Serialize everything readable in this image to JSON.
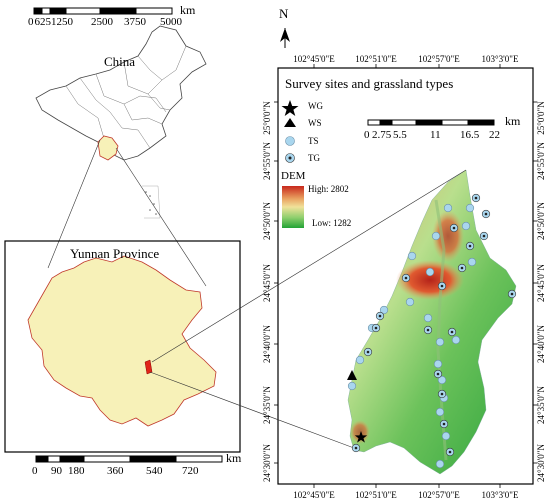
{
  "china_scalebar": {
    "ticks": [
      "0",
      "625",
      "1250",
      "2500",
      "3750",
      "5000"
    ],
    "unit": "km"
  },
  "china_label": "China",
  "yunnan_label": "Yunnan Province",
  "yunnan_scalebar": {
    "ticks": [
      "0",
      "90",
      "180",
      "360",
      "540",
      "720"
    ],
    "unit": "km"
  },
  "north_label": "N",
  "lon_labels_top": [
    "102°45'0\"E",
    "102°51'0\"E",
    "102°57'0\"E",
    "103°3'0\"E"
  ],
  "lon_labels_bottom": [
    "102°45'0\"E",
    "102°51'0\"E",
    "102°57'0\"E",
    "103°3'0\"E"
  ],
  "lat_labels_left": [
    "25°0'0\"N",
    "24°55'0\"N",
    "24°50'0\"N",
    "24°45'0\"N",
    "24°40'0\"N",
    "24°35'0\"N",
    "24°30'0\"N"
  ],
  "lat_labels_right": [
    "25°0'0\"N",
    "24°55'0\"N",
    "24°50'0\"N",
    "24°45'0\"N",
    "24°40'0\"N",
    "24°35'0\"N",
    "24°30'0\"N"
  ],
  "legend": {
    "title": "Survey sites and grassland types",
    "items": [
      {
        "symbol": "star",
        "label": "WG"
      },
      {
        "symbol": "triangle",
        "label": "WS"
      },
      {
        "symbol": "circle",
        "label": "TS"
      },
      {
        "symbol": "dot-circle",
        "label": "TG"
      }
    ],
    "dem_title": "DEM",
    "dem_high": "High: 2802",
    "dem_low": "Low: 1282"
  },
  "detail_scalebar": {
    "ticks": [
      "0",
      "2.75",
      "5.5",
      "11",
      "16.5",
      "22"
    ],
    "unit": "km"
  },
  "colors": {
    "study_area_red": "#e02418",
    "yunnan_fill": "#f7f1b8",
    "ts_fill": "#a9d6ee",
    "dem_high": "#c8281c",
    "dem_mid": "#f0e29a",
    "dem_low": "#23a336"
  }
}
